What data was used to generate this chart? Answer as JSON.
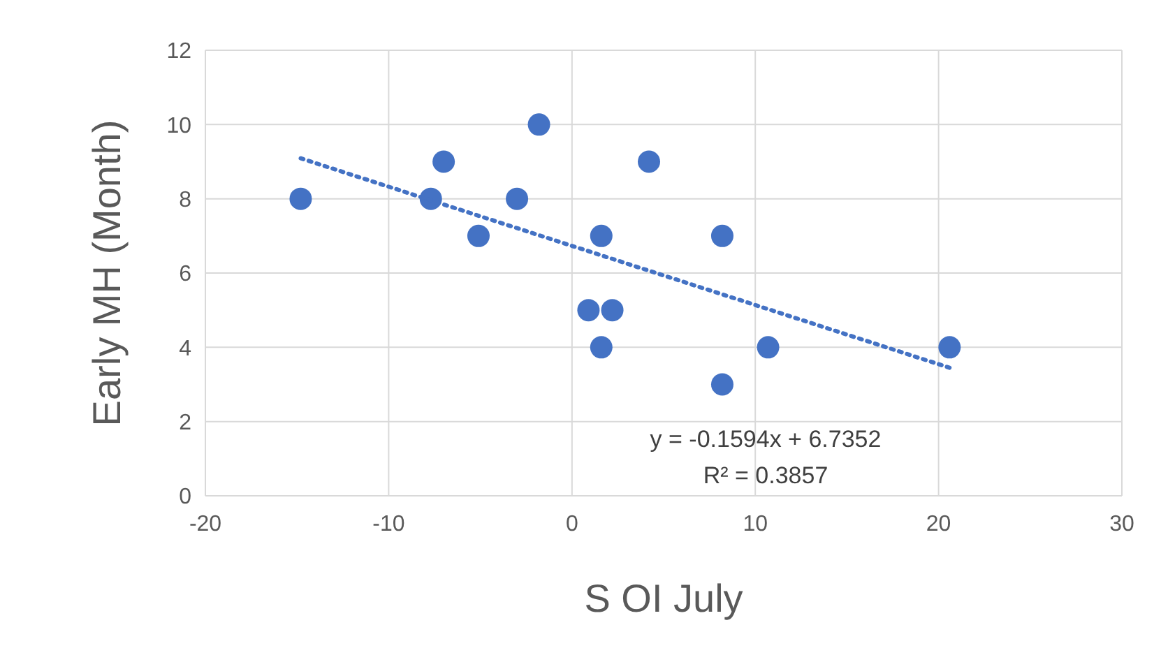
{
  "chart_data": {
    "type": "scatter",
    "xlabel": "S OI July",
    "ylabel": "Early MH (Month)",
    "xlim": [
      -20,
      30
    ],
    "xticks": [
      -20,
      -10,
      0,
      10,
      20,
      30
    ],
    "ylim": [
      0,
      12
    ],
    "yticks": [
      0,
      2,
      4,
      6,
      8,
      10,
      12
    ],
    "grid": true,
    "marker": "circle",
    "annotations": [
      "y = -0.1594x + 6.7352",
      "R² = 0.3857"
    ],
    "series": [
      {
        "color": "#4472c4",
        "x": [
          -14.8,
          -7.7,
          -7.0,
          -5.1,
          -3.0,
          -1.8,
          0.9,
          1.6,
          1.6,
          2.2,
          4.2,
          8.2,
          8.2,
          10.7,
          20.6
        ],
        "values": [
          8,
          8,
          9,
          7,
          8,
          10,
          5,
          7,
          4,
          5,
          9,
          7,
          3,
          4,
          4
        ]
      },
      {
        "type": "line",
        "color": "#4472c4",
        "line_style": "dotted",
        "marker": "none",
        "x": [
          -14.8,
          20.6
        ],
        "values": [
          9.09,
          3.45
        ]
      }
    ]
  }
}
